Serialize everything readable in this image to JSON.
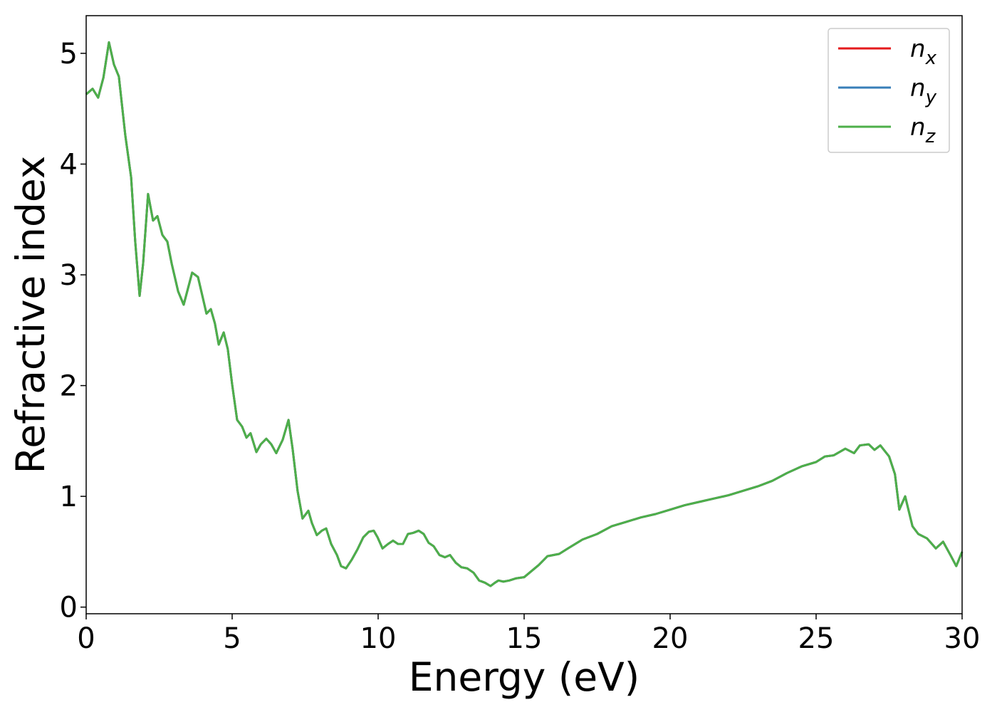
{
  "chart_data": {
    "type": "line",
    "xlabel": "Energy (eV)",
    "ylabel": "Refractive index",
    "xlim": [
      0,
      30
    ],
    "xticks": [
      0,
      5,
      10,
      15,
      20,
      25,
      30
    ],
    "ylim": [
      -0.06,
      5.34
    ],
    "yticks": [
      0,
      1,
      2,
      3,
      4,
      5
    ],
    "legend": "upper right",
    "x": [
      0,
      0.22,
      0.41,
      0.59,
      0.78,
      0.95,
      1.12,
      1.34,
      1.54,
      1.68,
      1.83,
      1.95,
      2.12,
      2.29,
      2.44,
      2.61,
      2.78,
      2.93,
      3.15,
      3.34,
      3.49,
      3.63,
      3.83,
      3.98,
      4.12,
      4.27,
      4.41,
      4.54,
      4.71,
      4.85,
      5.0,
      5.17,
      5.34,
      5.49,
      5.63,
      5.83,
      5.98,
      6.17,
      6.34,
      6.51,
      6.73,
      6.93,
      7.07,
      7.24,
      7.41,
      7.61,
      7.73,
      7.9,
      8.07,
      8.22,
      8.39,
      8.59,
      8.73,
      8.9,
      9.1,
      9.29,
      9.49,
      9.68,
      9.85,
      9.98,
      10.15,
      10.34,
      10.51,
      10.68,
      10.85,
      11.02,
      11.2,
      11.39,
      11.56,
      11.73,
      11.9,
      12.1,
      12.29,
      12.46,
      12.66,
      12.85,
      13.05,
      13.27,
      13.46,
      13.66,
      13.85,
      14.0,
      14.12,
      14.29,
      14.49,
      14.73,
      15,
      15.5,
      15.8,
      16.2,
      16.5,
      17,
      17.5,
      18,
      18.5,
      19,
      19.5,
      20,
      20.5,
      21,
      21.5,
      22,
      22.5,
      23,
      23.5,
      24,
      24.5,
      25,
      25.3,
      25.6,
      26,
      26.3,
      26.5,
      26.8,
      27,
      27.2,
      27.5,
      27.7,
      27.85,
      28.05,
      28.3,
      28.5,
      28.8,
      29.1,
      29.35,
      29.6,
      29.8,
      30
    ],
    "series": [
      {
        "name": "nx",
        "color": "#e41a1c",
        "values": [
          4.63,
          4.68,
          4.6,
          4.78,
          5.1,
          4.9,
          4.79,
          4.26,
          3.88,
          3.3,
          2.81,
          3.1,
          3.73,
          3.49,
          3.53,
          3.36,
          3.3,
          3.1,
          2.85,
          2.73,
          2.88,
          3.02,
          2.98,
          2.81,
          2.65,
          2.69,
          2.56,
          2.37,
          2.48,
          2.33,
          2.01,
          1.69,
          1.63,
          1.53,
          1.57,
          1.4,
          1.47,
          1.52,
          1.47,
          1.39,
          1.51,
          1.69,
          1.43,
          1.05,
          0.8,
          0.87,
          0.76,
          0.65,
          0.69,
          0.71,
          0.57,
          0.47,
          0.37,
          0.35,
          0.43,
          0.52,
          0.63,
          0.68,
          0.69,
          0.63,
          0.53,
          0.57,
          0.6,
          0.57,
          0.57,
          0.66,
          0.67,
          0.69,
          0.66,
          0.58,
          0.55,
          0.47,
          0.45,
          0.47,
          0.4,
          0.36,
          0.35,
          0.31,
          0.24,
          0.22,
          0.19,
          0.22,
          0.24,
          0.23,
          0.24,
          0.26,
          0.27,
          0.38,
          0.46,
          0.48,
          0.53,
          0.61,
          0.66,
          0.73,
          0.77,
          0.81,
          0.84,
          0.88,
          0.92,
          0.95,
          0.98,
          1.01,
          1.05,
          1.09,
          1.14,
          1.21,
          1.27,
          1.31,
          1.36,
          1.37,
          1.43,
          1.39,
          1.46,
          1.47,
          1.42,
          1.46,
          1.36,
          1.2,
          0.88,
          1.0,
          0.73,
          0.66,
          0.62,
          0.53,
          0.59,
          0.47,
          0.37,
          0.5
        ]
      },
      {
        "name": "ny",
        "color": "#377eb8",
        "values": [
          4.63,
          4.68,
          4.6,
          4.78,
          5.1,
          4.9,
          4.79,
          4.26,
          3.88,
          3.3,
          2.81,
          3.1,
          3.73,
          3.49,
          3.53,
          3.36,
          3.3,
          3.1,
          2.85,
          2.73,
          2.88,
          3.02,
          2.98,
          2.81,
          2.65,
          2.69,
          2.56,
          2.37,
          2.48,
          2.33,
          2.01,
          1.69,
          1.63,
          1.53,
          1.57,
          1.4,
          1.47,
          1.52,
          1.47,
          1.39,
          1.51,
          1.69,
          1.43,
          1.05,
          0.8,
          0.87,
          0.76,
          0.65,
          0.69,
          0.71,
          0.57,
          0.47,
          0.37,
          0.35,
          0.43,
          0.52,
          0.63,
          0.68,
          0.69,
          0.63,
          0.53,
          0.57,
          0.6,
          0.57,
          0.57,
          0.66,
          0.67,
          0.69,
          0.66,
          0.58,
          0.55,
          0.47,
          0.45,
          0.47,
          0.4,
          0.36,
          0.35,
          0.31,
          0.24,
          0.22,
          0.19,
          0.22,
          0.24,
          0.23,
          0.24,
          0.26,
          0.27,
          0.38,
          0.46,
          0.48,
          0.53,
          0.61,
          0.66,
          0.73,
          0.77,
          0.81,
          0.84,
          0.88,
          0.92,
          0.95,
          0.98,
          1.01,
          1.05,
          1.09,
          1.14,
          1.21,
          1.27,
          1.31,
          1.36,
          1.37,
          1.43,
          1.39,
          1.46,
          1.47,
          1.42,
          1.46,
          1.36,
          1.2,
          0.88,
          1.0,
          0.73,
          0.66,
          0.62,
          0.53,
          0.59,
          0.47,
          0.37,
          0.5
        ]
      },
      {
        "name": "nz",
        "color": "#4daf4a",
        "values": [
          4.63,
          4.68,
          4.6,
          4.78,
          5.1,
          4.9,
          4.79,
          4.26,
          3.88,
          3.3,
          2.81,
          3.1,
          3.73,
          3.49,
          3.53,
          3.36,
          3.3,
          3.1,
          2.85,
          2.73,
          2.88,
          3.02,
          2.98,
          2.81,
          2.65,
          2.69,
          2.56,
          2.37,
          2.48,
          2.33,
          2.01,
          1.69,
          1.63,
          1.53,
          1.57,
          1.4,
          1.47,
          1.52,
          1.47,
          1.39,
          1.51,
          1.69,
          1.43,
          1.05,
          0.8,
          0.87,
          0.76,
          0.65,
          0.69,
          0.71,
          0.57,
          0.47,
          0.37,
          0.35,
          0.43,
          0.52,
          0.63,
          0.68,
          0.69,
          0.63,
          0.53,
          0.57,
          0.6,
          0.57,
          0.57,
          0.66,
          0.67,
          0.69,
          0.66,
          0.58,
          0.55,
          0.47,
          0.45,
          0.47,
          0.4,
          0.36,
          0.35,
          0.31,
          0.24,
          0.22,
          0.19,
          0.22,
          0.24,
          0.23,
          0.24,
          0.26,
          0.27,
          0.38,
          0.46,
          0.48,
          0.53,
          0.61,
          0.66,
          0.73,
          0.77,
          0.81,
          0.84,
          0.88,
          0.92,
          0.95,
          0.98,
          1.01,
          1.05,
          1.09,
          1.14,
          1.21,
          1.27,
          1.31,
          1.36,
          1.37,
          1.43,
          1.39,
          1.46,
          1.47,
          1.42,
          1.46,
          1.36,
          1.2,
          0.88,
          1.0,
          0.73,
          0.66,
          0.62,
          0.53,
          0.59,
          0.47,
          0.37,
          0.5
        ]
      }
    ]
  }
}
